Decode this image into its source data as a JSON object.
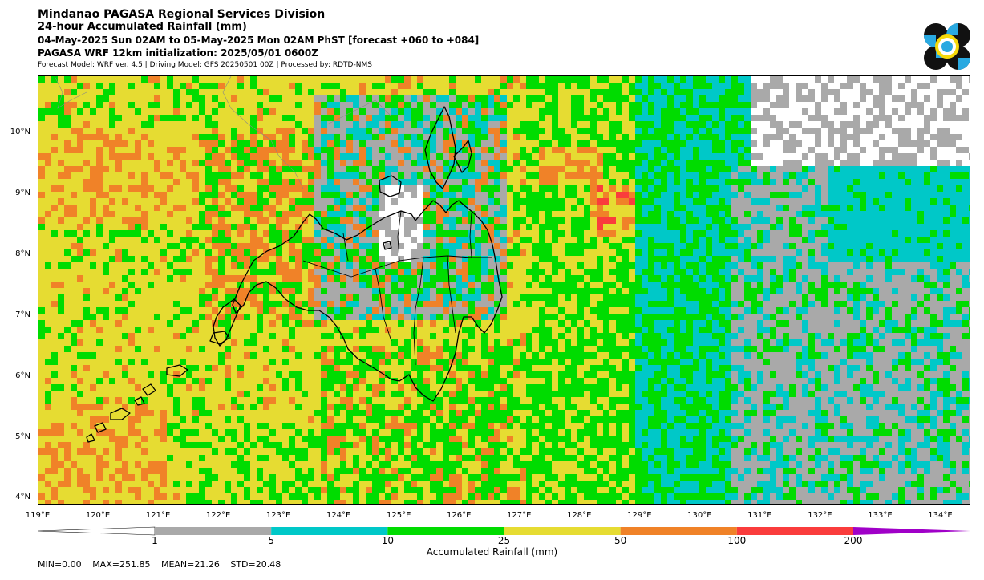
{
  "header": {
    "line1": "Mindanao PAGASA Regional Services Division",
    "line2": "24-hour Accumulated Rainfall (mm)",
    "line3": "04-May-2025 Sun 02AM to 05-May-2025 Mon 02AM PhST [forecast +060 to +084]",
    "line4": "PAGASA WRF 12km initialization: 2025/05/01 0600Z",
    "line5": "Forecast Model: WRF ver. 4.5 | Driving Model: GFS 20250501 00Z | Processed by: RDTD-NMS"
  },
  "map": {
    "lat_labels": [
      "10°N",
      "9°N",
      "8°N",
      "7°N",
      "6°N",
      "5°N",
      "4°N"
    ],
    "lon_labels": [
      "119°E",
      "120°E",
      "121°E",
      "122°E",
      "123°E",
      "124°E",
      "125°E",
      "126°E",
      "127°E",
      "128°E",
      "129°E",
      "130°E",
      "131°E",
      "132°E",
      "133°E",
      "134°E"
    ],
    "lon_range": [
      119,
      134.5
    ],
    "lat_range": [
      3.9,
      10.95
    ]
  },
  "colorbar": {
    "ticks": [
      "1",
      "5",
      "10",
      "25",
      "50",
      "100",
      "200"
    ],
    "colors": [
      "#ffffff",
      "#a9a9a9",
      "#00c8c8",
      "#00dc00",
      "#e6dc32",
      "#f08228",
      "#fa3c3c",
      "#a000c8"
    ],
    "label": "Accumulated Rainfall (mm)"
  },
  "stats": {
    "min": "MIN=0.00",
    "max": "MAX=251.85",
    "mean": "MEAN=21.26",
    "std": "STD=20.48"
  }
}
